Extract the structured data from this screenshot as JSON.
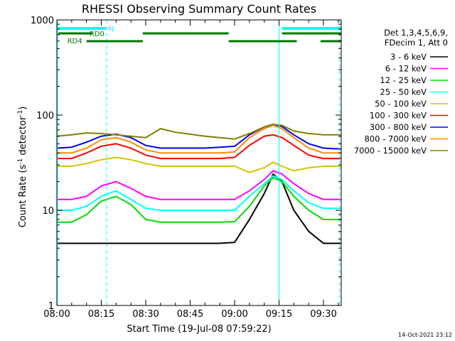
{
  "chart_data": {
    "type": "line",
    "title": "RHESSI Observing Summary Count Rates",
    "xlabel": "Start Time (19-Jul-08 07:59:22)",
    "ylabel": "Count Rate (s⁻¹ detector⁻¹)",
    "ylabel_parts": {
      "a": "Count Rate (s",
      "b": "-1",
      "c": " detector",
      "d": "-1",
      "e": ")"
    },
    "yscale": "log",
    "ylim": [
      1,
      1000
    ],
    "xlim_minutes": [
      0,
      96
    ],
    "x_ticks": [
      {
        "label": "08:00",
        "min": 0
      },
      {
        "label": "08:15",
        "min": 15
      },
      {
        "label": "08:30",
        "min": 30
      },
      {
        "label": "08:45",
        "min": 45
      },
      {
        "label": "09:00",
        "min": 60
      },
      {
        "label": "09:15",
        "min": 75
      },
      {
        "label": "09:30",
        "min": 90
      }
    ],
    "y_ticks": [
      {
        "label": "1",
        "value": 1
      },
      {
        "label": "10",
        "value": 10
      },
      {
        "label": "100",
        "value": 100
      },
      {
        "label": "1000",
        "value": 1000
      }
    ],
    "legend_header": [
      "Det 1,3,4,5,6,9,",
      "FDecim 1, Att 0"
    ],
    "legend_position": "right",
    "series": [
      {
        "name": "3 - 6 keV",
        "color": "#000000",
        "x": [
          0,
          5,
          10,
          15,
          20,
          25,
          30,
          35,
          40,
          45,
          50,
          55,
          60,
          65,
          70,
          73,
          76,
          80,
          85,
          90,
          96
        ],
        "y": [
          4.5,
          4.5,
          4.5,
          4.5,
          4.5,
          4.5,
          4.5,
          4.5,
          4.5,
          4.5,
          4.5,
          4.5,
          4.6,
          8,
          15,
          24,
          20,
          10,
          6,
          4.5,
          4.5
        ]
      },
      {
        "name": "6 - 12 keV",
        "color": "#ff00ff",
        "x": [
          0,
          5,
          10,
          15,
          20,
          25,
          30,
          35,
          40,
          45,
          50,
          55,
          60,
          65,
          70,
          73,
          76,
          80,
          85,
          90,
          96
        ],
        "y": [
          13,
          13,
          14,
          18,
          20,
          17,
          14,
          13,
          13,
          13,
          13,
          13,
          13,
          16,
          21,
          26,
          24,
          19,
          15,
          13,
          13
        ]
      },
      {
        "name": "12 - 25 keV",
        "color": "#00dd00",
        "x": [
          0,
          5,
          10,
          15,
          20,
          25,
          30,
          35,
          40,
          45,
          50,
          55,
          60,
          65,
          70,
          73,
          76,
          80,
          85,
          90,
          96
        ],
        "y": [
          7.5,
          7.5,
          9,
          12.5,
          14,
          11.5,
          8,
          7.5,
          7.5,
          7.5,
          7.5,
          7.5,
          7.6,
          11,
          18,
          22,
          20,
          14,
          10,
          8,
          8
        ]
      },
      {
        "name": "25 - 50 keV",
        "color": "#00ffff",
        "x": [
          0,
          5,
          10,
          15,
          20,
          25,
          30,
          35,
          40,
          45,
          50,
          55,
          60,
          65,
          70,
          73,
          76,
          80,
          85,
          90,
          96
        ],
        "y": [
          10,
          10,
          11,
          14,
          16,
          13,
          10.5,
          10,
          10,
          10,
          10,
          10,
          10,
          14,
          19,
          23,
          21,
          16,
          12,
          10.5,
          10.5
        ]
      },
      {
        "name": "50 - 100 keV",
        "color": "#d4c400",
        "x": [
          0,
          5,
          10,
          15,
          20,
          25,
          30,
          35,
          40,
          45,
          50,
          55,
          60,
          65,
          70,
          73,
          76,
          80,
          85,
          90,
          96
        ],
        "y": [
          29,
          29,
          31,
          34,
          36,
          34,
          31,
          29,
          29,
          29,
          29,
          29,
          29,
          25,
          28,
          32,
          29,
          26,
          28,
          29,
          29
        ]
      },
      {
        "name": "100 - 300 keV",
        "color": "#ff0000",
        "x": [
          0,
          5,
          10,
          15,
          20,
          25,
          30,
          35,
          40,
          45,
          50,
          55,
          60,
          65,
          70,
          73,
          76,
          80,
          85,
          90,
          96
        ],
        "y": [
          35,
          35,
          40,
          47,
          50,
          45,
          38,
          35,
          35,
          35,
          35,
          35,
          36,
          48,
          60,
          62,
          58,
          48,
          38,
          35,
          35
        ]
      },
      {
        "name": "300 - 800 keV",
        "color": "#0000ff",
        "x": [
          0,
          5,
          10,
          15,
          20,
          25,
          30,
          35,
          40,
          45,
          50,
          55,
          60,
          65,
          70,
          73,
          76,
          80,
          85,
          90,
          96
        ],
        "y": [
          45,
          46,
          52,
          60,
          63,
          58,
          48,
          45,
          45,
          45,
          45,
          46,
          47,
          62,
          75,
          80,
          76,
          62,
          50,
          45,
          44
        ]
      },
      {
        "name": "800 - 7000 keV",
        "color": "#ff8c00",
        "x": [
          0,
          5,
          10,
          15,
          20,
          25,
          30,
          35,
          40,
          45,
          50,
          55,
          60,
          65,
          70,
          73,
          76,
          80,
          85,
          90,
          96
        ],
        "y": [
          40,
          40,
          45,
          55,
          58,
          52,
          43,
          40,
          40,
          40,
          40,
          40,
          41,
          58,
          72,
          78,
          72,
          58,
          45,
          40,
          40
        ]
      },
      {
        "name": "7000 - 15000 keV",
        "color": "#808000",
        "x": [
          0,
          5,
          10,
          15,
          20,
          25,
          30,
          35,
          40,
          45,
          50,
          55,
          60,
          65,
          70,
          73,
          76,
          80,
          85,
          90,
          96
        ],
        "y": [
          60,
          62,
          65,
          64,
          62,
          60,
          58,
          72,
          66,
          63,
          60,
          58,
          56,
          64,
          75,
          80,
          78,
          68,
          64,
          62,
          62
        ]
      }
    ]
  },
  "flags": [
    {
      "label": "N",
      "color": "#00ffff"
    },
    {
      "label": "RD0",
      "color": "#007700"
    },
    {
      "label": "RD4",
      "color": "#007700"
    }
  ],
  "stamp": "14-Oct-2021 23:12"
}
